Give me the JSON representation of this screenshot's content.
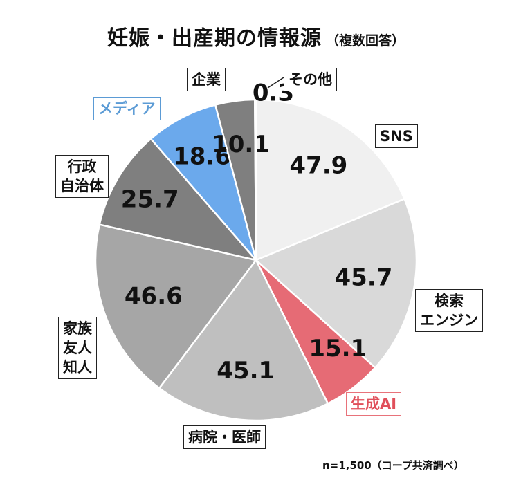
{
  "title": "妊娠・出産期の情報源",
  "subtitle": "（複数回答）",
  "note": "n=1,500（コープ共済調べ）",
  "chart_data": {
    "type": "pie",
    "title": "妊娠・出産期の情報源",
    "subtitle": "（複数回答）",
    "slices": [
      {
        "label": "SNS",
        "value": 47.9,
        "color": "#f0f0f0"
      },
      {
        "label": "検索\nエンジン",
        "value": 45.7,
        "color": "#d9d9d9"
      },
      {
        "label": "生成AI",
        "value": 15.1,
        "color": "#e66b75"
      },
      {
        "label": "病院・医師",
        "value": 45.1,
        "color": "#bfbfbf"
      },
      {
        "label": "家族\n友人\n知人",
        "value": 46.6,
        "color": "#a6a6a6"
      },
      {
        "label": "行政\n自治体",
        "value": 25.7,
        "color": "#7f7f7f"
      },
      {
        "label": "メディア",
        "value": 18.6,
        "color": "#6ba9ec"
      },
      {
        "label": "企業",
        "value": 10.1,
        "color": "#7f7f7f"
      },
      {
        "label": "その他",
        "value": 0.3,
        "color": "#7f7f7f"
      }
    ]
  }
}
